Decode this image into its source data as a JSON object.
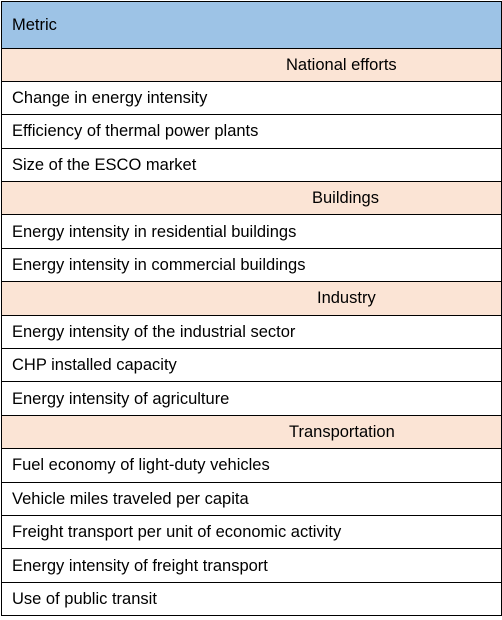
{
  "table": {
    "header": "Metric",
    "sections": [
      {
        "title": "National efforts",
        "indent": 274,
        "rows": [
          "Change in energy intensity",
          "Efficiency of thermal power plants",
          "Size of the ESCO market"
        ]
      },
      {
        "title": "Buildings",
        "indent": 300,
        "rows": [
          "Energy intensity in residential buildings",
          "Energy intensity in commercial buildings"
        ]
      },
      {
        "title": "Industry",
        "indent": 305,
        "rows": [
          "Energy intensity of the industrial sector",
          "CHP installed capacity",
          "Energy intensity of agriculture"
        ]
      },
      {
        "title": "Transportation",
        "indent": 277,
        "rows": [
          "Fuel economy of light-duty vehicles",
          "Vehicle miles traveled per capita",
          "Freight transport per unit of economic activity",
          "Energy intensity of freight transport",
          "Use of public transit"
        ]
      }
    ]
  }
}
